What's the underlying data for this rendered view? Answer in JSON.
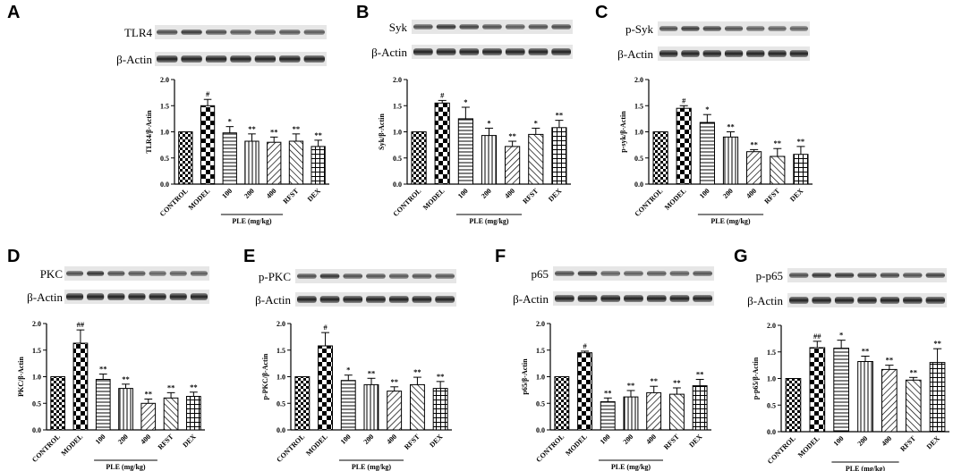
{
  "chart_data": [
    {
      "panel": "A",
      "type": "bar",
      "blot_labels": [
        "TLR4",
        "β-Actin"
      ],
      "ylabel": "TLR4/β-Actin",
      "ylim": [
        0,
        2.0
      ],
      "yticks": [
        "0.0",
        "0.5",
        "1.0",
        "1.5",
        "2.0"
      ],
      "categories": [
        "CONTROL",
        "MODEL",
        "100",
        "200",
        "400",
        "RFST",
        "DEX"
      ],
      "values": [
        1.0,
        1.5,
        0.98,
        0.82,
        0.8,
        0.82,
        0.72
      ],
      "errors": [
        0.0,
        0.12,
        0.12,
        0.14,
        0.1,
        0.14,
        0.12
      ],
      "significance": [
        "",
        "#",
        "*",
        "**",
        "**",
        "**",
        "**"
      ],
      "group_label": "PLE (mg/kg)"
    },
    {
      "panel": "B",
      "type": "bar",
      "blot_labels": [
        "Syk",
        "β-Actin"
      ],
      "ylabel": "Syk/β-Actin",
      "ylim": [
        0,
        2.0
      ],
      "yticks": [
        "0.0",
        "0.5",
        "1.0",
        "1.5",
        "2.0"
      ],
      "categories": [
        "CONTROL",
        "MODEL",
        "100",
        "200",
        "400",
        "RFST",
        "DEX"
      ],
      "values": [
        1.0,
        1.55,
        1.25,
        0.93,
        0.72,
        0.95,
        1.08
      ],
      "errors": [
        0.0,
        0.05,
        0.22,
        0.14,
        0.1,
        0.12,
        0.14
      ],
      "significance": [
        "",
        "#",
        "*",
        "*",
        "**",
        "*",
        "**"
      ],
      "group_label": "PLE (mg/kg)"
    },
    {
      "panel": "C",
      "type": "bar",
      "blot_labels": [
        "p-Syk",
        "β-Actin"
      ],
      "ylabel": "p-syk/β-Actin",
      "ylim": [
        0,
        2.0
      ],
      "yticks": [
        "0.0",
        "0.5",
        "1.0",
        "1.5",
        "2.0"
      ],
      "categories": [
        "CONTROL",
        "MODEL",
        "100",
        "200",
        "400",
        "RFST",
        "DEX"
      ],
      "values": [
        1.0,
        1.45,
        1.18,
        0.9,
        0.62,
        0.53,
        0.57
      ],
      "errors": [
        0.0,
        0.05,
        0.15,
        0.1,
        0.04,
        0.15,
        0.15
      ],
      "significance": [
        "",
        "#",
        "*",
        "**",
        "**",
        "**",
        "**"
      ],
      "group_label": "PLE (mg/kg)"
    },
    {
      "panel": "D",
      "type": "bar",
      "blot_labels": [
        "PKC",
        "β-Actin"
      ],
      "ylabel": "PKC/β-Actin",
      "ylim": [
        0,
        2.0
      ],
      "yticks": [
        "0.0",
        "0.5",
        "1.0",
        "1.5",
        "2.0"
      ],
      "categories": [
        "CONTROL",
        "MODEL",
        "100",
        "200",
        "400",
        "RFST",
        "DEX"
      ],
      "values": [
        1.0,
        1.63,
        0.95,
        0.78,
        0.5,
        0.6,
        0.63
      ],
      "errors": [
        0.0,
        0.25,
        0.1,
        0.08,
        0.08,
        0.1,
        0.08
      ],
      "significance": [
        "",
        "##",
        "**",
        "**",
        "**",
        "**",
        "**"
      ],
      "group_label": "PLE (mg/kg)"
    },
    {
      "panel": "E",
      "type": "bar",
      "blot_labels": [
        "p-PKC",
        "β-Actin"
      ],
      "ylabel": "p-PKC/β-Actin",
      "ylim": [
        0,
        2.0
      ],
      "yticks": [
        "0.0",
        "0.5",
        "1.0",
        "1.5",
        "2.0"
      ],
      "categories": [
        "CONTROL",
        "MODEL",
        "100",
        "200",
        "400",
        "RFST",
        "DEX"
      ],
      "values": [
        1.0,
        1.58,
        0.93,
        0.85,
        0.73,
        0.85,
        0.78
      ],
      "errors": [
        0.0,
        0.25,
        0.1,
        0.12,
        0.08,
        0.14,
        0.13
      ],
      "significance": [
        "",
        "#",
        "*",
        "**",
        "**",
        "**",
        "**"
      ],
      "group_label": "PLE (mg/kg)"
    },
    {
      "panel": "F",
      "type": "bar",
      "blot_labels": [
        "p65",
        "β-Actin"
      ],
      "ylabel": "p65/β-Actin",
      "ylim": [
        0,
        2.0
      ],
      "yticks": [
        "0.0",
        "0.5",
        "1.0",
        "1.5",
        "2.0"
      ],
      "categories": [
        "CONTROL",
        "MODEL",
        "100",
        "200",
        "400",
        "RFST",
        "DEX"
      ],
      "values": [
        1.0,
        1.45,
        0.53,
        0.62,
        0.7,
        0.67,
        0.83
      ],
      "errors": [
        0.0,
        0.03,
        0.07,
        0.12,
        0.12,
        0.12,
        0.12
      ],
      "significance": [
        "",
        "#",
        "**",
        "**",
        "**",
        "**",
        "**"
      ],
      "group_label": "PLE (mg/kg)"
    },
    {
      "panel": "G",
      "type": "bar",
      "blot_labels": [
        "p-p65",
        "β-Actin"
      ],
      "ylabel": "p-p65/β-Actin",
      "ylim": [
        0,
        2.0
      ],
      "yticks": [
        "0.0",
        "0.5",
        "1.0",
        "1.5",
        "2.0"
      ],
      "categories": [
        "CONTROL",
        "MODEL",
        "100",
        "200",
        "400",
        "RFST",
        "DEX"
      ],
      "values": [
        1.0,
        1.58,
        1.57,
        1.32,
        1.17,
        0.97,
        1.3
      ],
      "errors": [
        0.0,
        0.12,
        0.15,
        0.1,
        0.08,
        0.05,
        0.26
      ],
      "significance": [
        "",
        "##",
        "*",
        "**",
        "**",
        "**",
        "**"
      ],
      "group_label": "PLE (mg/kg)"
    }
  ]
}
